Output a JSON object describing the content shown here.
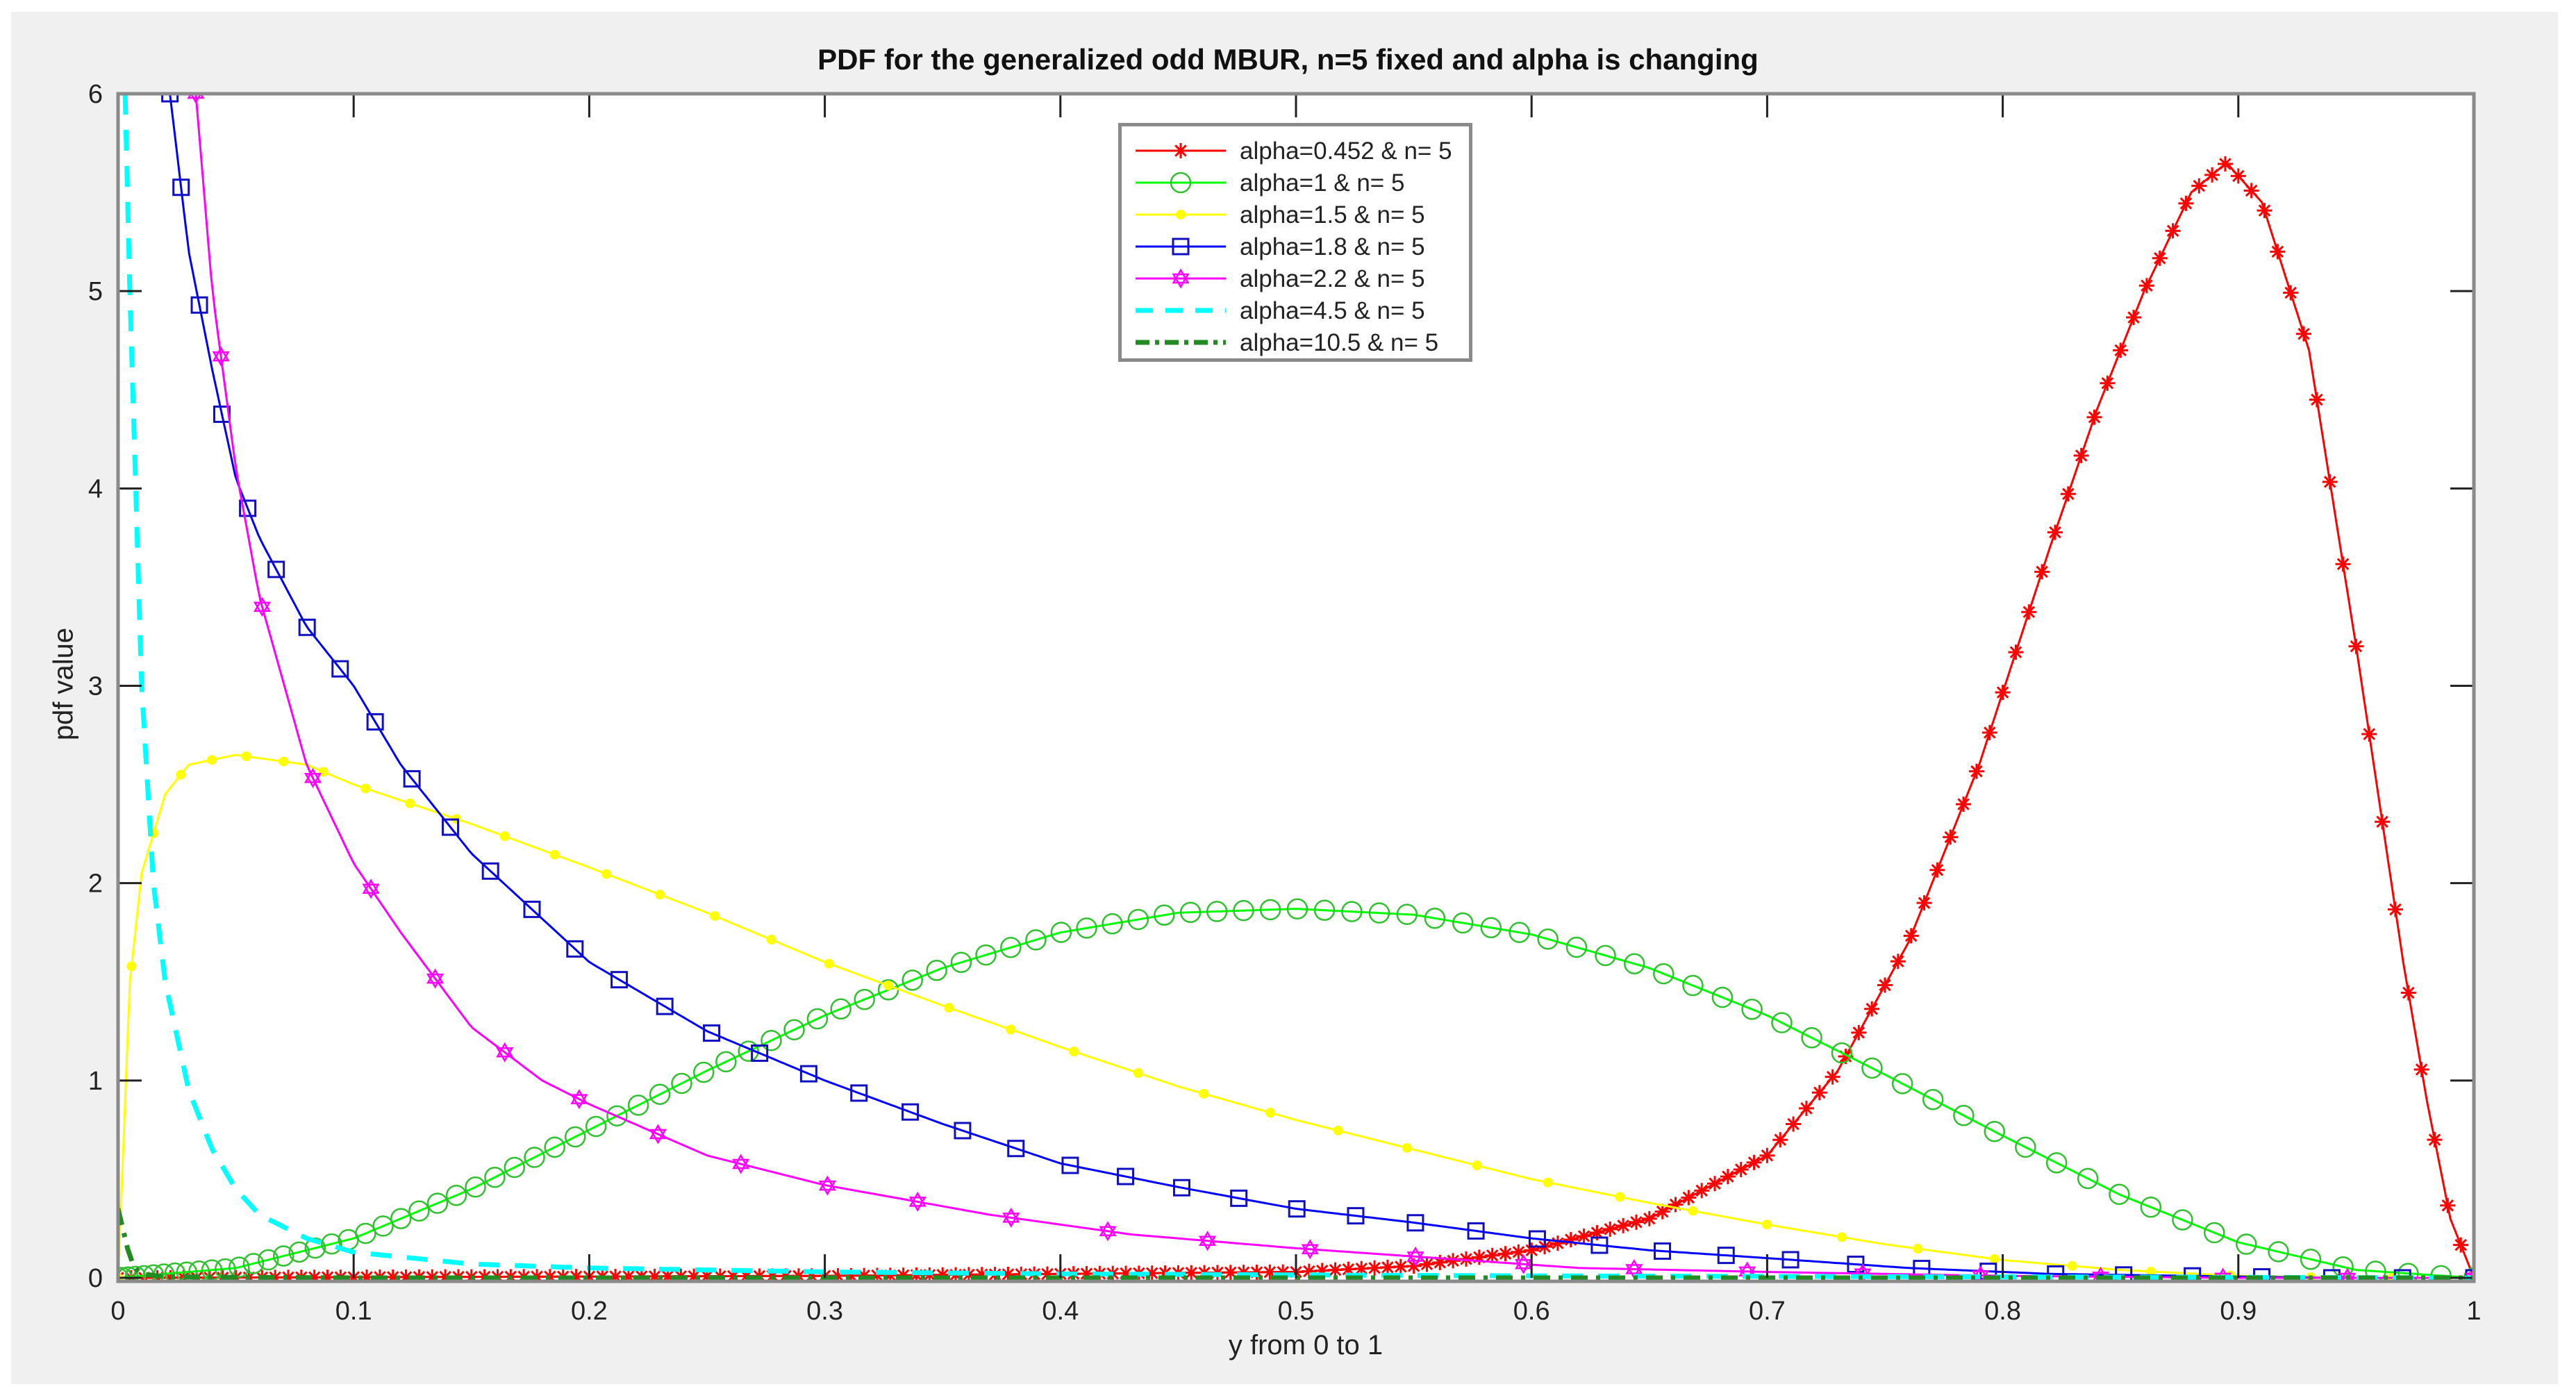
{
  "chart_data": {
    "type": "line",
    "title": "PDF for the generalized odd MBUR, n=5 fixed and alpha is changing",
    "xlabel": "y from 0 to 1",
    "ylabel": "pdf value",
    "xlim": [
      0,
      1
    ],
    "ylim": [
      0,
      6
    ],
    "xticks": [
      "0",
      "0.1",
      "0.2",
      "0.3",
      "0.4",
      "0.5",
      "0.6",
      "0.7",
      "0.8",
      "0.9",
      "1"
    ],
    "yticks": [
      "0",
      "1",
      "2",
      "3",
      "4",
      "5",
      "6"
    ],
    "grid": false,
    "legend_position": "top-center",
    "series": [
      {
        "name": "alpha=0.452 & n= 5",
        "color": "#ff0000",
        "marker": "asterisk",
        "line": "solid",
        "x": [
          0,
          0.3,
          0.5,
          0.55,
          0.6,
          0.65,
          0.7,
          0.73,
          0.76,
          0.79,
          0.82,
          0.84,
          0.86,
          0.88,
          0.895,
          0.91,
          0.93,
          0.95,
          0.96,
          0.97,
          0.98,
          0.99,
          1.0
        ],
        "values": [
          0,
          0.01,
          0.03,
          0.06,
          0.14,
          0.3,
          0.62,
          1.05,
          1.7,
          2.6,
          3.7,
          4.4,
          5.0,
          5.5,
          5.65,
          5.45,
          4.7,
          3.2,
          2.4,
          1.6,
          0.9,
          0.3,
          0
        ]
      },
      {
        "name": "alpha=1 & n= 5",
        "color": "#00ff00",
        "marker": "circle",
        "line": "solid",
        "x": [
          0,
          0.05,
          0.1,
          0.15,
          0.2,
          0.25,
          0.3,
          0.35,
          0.4,
          0.45,
          0.5,
          0.55,
          0.6,
          0.65,
          0.7,
          0.75,
          0.8,
          0.85,
          0.9,
          0.95,
          1.0
        ],
        "values": [
          0,
          0.05,
          0.2,
          0.45,
          0.75,
          1.05,
          1.33,
          1.57,
          1.75,
          1.85,
          1.87,
          1.84,
          1.74,
          1.57,
          1.33,
          1.03,
          0.72,
          0.42,
          0.18,
          0.04,
          0
        ]
      },
      {
        "name": "alpha=1.5 & n= 5",
        "color": "#ffff00",
        "marker": "star",
        "line": "solid",
        "x": [
          0,
          0.005,
          0.01,
          0.02,
          0.03,
          0.05,
          0.08,
          0.1,
          0.15,
          0.2,
          0.25,
          0.3,
          0.35,
          0.4,
          0.45,
          0.5,
          0.55,
          0.6,
          0.65,
          0.7,
          0.75,
          0.8,
          0.85,
          0.9,
          0.95,
          1.0
        ],
        "values": [
          0,
          1.5,
          2.05,
          2.45,
          2.6,
          2.65,
          2.6,
          2.5,
          2.3,
          2.08,
          1.85,
          1.6,
          1.38,
          1.17,
          0.97,
          0.8,
          0.65,
          0.5,
          0.38,
          0.27,
          0.17,
          0.09,
          0.04,
          0.01,
          0.0,
          0
        ]
      },
      {
        "name": "alpha=1.8 & n= 5",
        "color": "#0000ff",
        "marker": "square",
        "line": "solid",
        "x": [
          0.022,
          0.03,
          0.04,
          0.05,
          0.06,
          0.08,
          0.1,
          0.12,
          0.15,
          0.2,
          0.25,
          0.3,
          0.35,
          0.4,
          0.45,
          0.5,
          0.55,
          0.6,
          0.65,
          0.7,
          0.76,
          0.82,
          0.88,
          0.94,
          1.0
        ],
        "values": [
          6.0,
          5.2,
          4.6,
          4.05,
          3.75,
          3.3,
          3.0,
          2.6,
          2.15,
          1.6,
          1.25,
          1.0,
          0.78,
          0.58,
          0.46,
          0.35,
          0.28,
          0.2,
          0.14,
          0.1,
          0.05,
          0.02,
          0.01,
          0.0,
          0
        ]
      },
      {
        "name": "alpha=2.2 & n= 5",
        "color": "#ff00ff",
        "marker": "hexagram",
        "line": "solid",
        "x": [
          0.033,
          0.04,
          0.05,
          0.06,
          0.08,
          0.1,
          0.12,
          0.15,
          0.18,
          0.2,
          0.25,
          0.3,
          0.37,
          0.43,
          0.5,
          0.56,
          0.62,
          0.7,
          0.8,
          0.9,
          1.0
        ],
        "values": [
          6.0,
          5.0,
          4.1,
          3.45,
          2.6,
          2.1,
          1.75,
          1.27,
          1.0,
          0.88,
          0.62,
          0.47,
          0.32,
          0.22,
          0.15,
          0.1,
          0.05,
          0.03,
          0.01,
          0.0,
          0
        ]
      },
      {
        "name": "alpha=4.5 & n= 5",
        "color": "#00ffff",
        "marker": "none",
        "line": "dashed",
        "x": [
          0.003,
          0.005,
          0.008,
          0.01,
          0.015,
          0.02,
          0.03,
          0.04,
          0.05,
          0.06,
          0.08,
          0.1,
          0.15,
          0.2,
          0.3,
          0.4,
          0.6,
          0.8,
          1.0
        ],
        "values": [
          6.0,
          5.0,
          3.8,
          3.0,
          2.0,
          1.5,
          0.95,
          0.65,
          0.45,
          0.32,
          0.2,
          0.13,
          0.07,
          0.05,
          0.03,
          0.02,
          0.01,
          0.005,
          0
        ]
      },
      {
        "name": "alpha=10.5 & n= 5",
        "color": "#228b22",
        "marker": "none",
        "line": "dashdot",
        "x": [
          0,
          0.002,
          0.004,
          0.006,
          0.008,
          0.01,
          0.02,
          0.1,
          0.5,
          1.0
        ],
        "values": [
          0.35,
          0.25,
          0.15,
          0.08,
          0.04,
          0.02,
          0.005,
          0,
          0,
          0
        ]
      }
    ]
  }
}
